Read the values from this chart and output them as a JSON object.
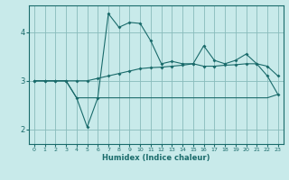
{
  "xlabel": "Humidex (Indice chaleur)",
  "background_color": "#c8eaea",
  "grid_color": "#88bbbb",
  "line_color": "#1a6b6b",
  "xlim": [
    -0.5,
    23.5
  ],
  "ylim": [
    1.7,
    4.55
  ],
  "x": [
    0,
    1,
    2,
    3,
    4,
    5,
    6,
    7,
    8,
    9,
    10,
    11,
    12,
    13,
    14,
    15,
    16,
    17,
    18,
    19,
    20,
    21,
    22,
    23
  ],
  "line1": [
    3.0,
    3.0,
    3.0,
    3.0,
    2.65,
    2.05,
    2.65,
    4.38,
    4.1,
    4.2,
    4.18,
    3.82,
    3.35,
    3.4,
    3.35,
    3.35,
    3.72,
    3.42,
    3.35,
    3.42,
    3.55,
    3.35,
    3.1,
    2.72
  ],
  "line2": [
    3.0,
    3.0,
    3.0,
    3.0,
    3.0,
    3.0,
    3.05,
    3.1,
    3.15,
    3.2,
    3.25,
    3.27,
    3.28,
    3.3,
    3.32,
    3.35,
    3.3,
    3.3,
    3.32,
    3.33,
    3.35,
    3.35,
    3.3,
    3.1
  ],
  "line3": [
    3.0,
    3.0,
    3.0,
    3.0,
    2.65,
    2.65,
    2.65,
    2.65,
    2.65,
    2.65,
    2.65,
    2.65,
    2.65,
    2.65,
    2.65,
    2.65,
    2.65,
    2.65,
    2.65,
    2.65,
    2.65,
    2.65,
    2.65,
    2.72
  ],
  "yticks": [
    2,
    3,
    4
  ],
  "xticks": [
    0,
    1,
    2,
    3,
    4,
    5,
    6,
    7,
    8,
    9,
    10,
    11,
    12,
    13,
    14,
    15,
    16,
    17,
    18,
    19,
    20,
    21,
    22,
    23
  ]
}
